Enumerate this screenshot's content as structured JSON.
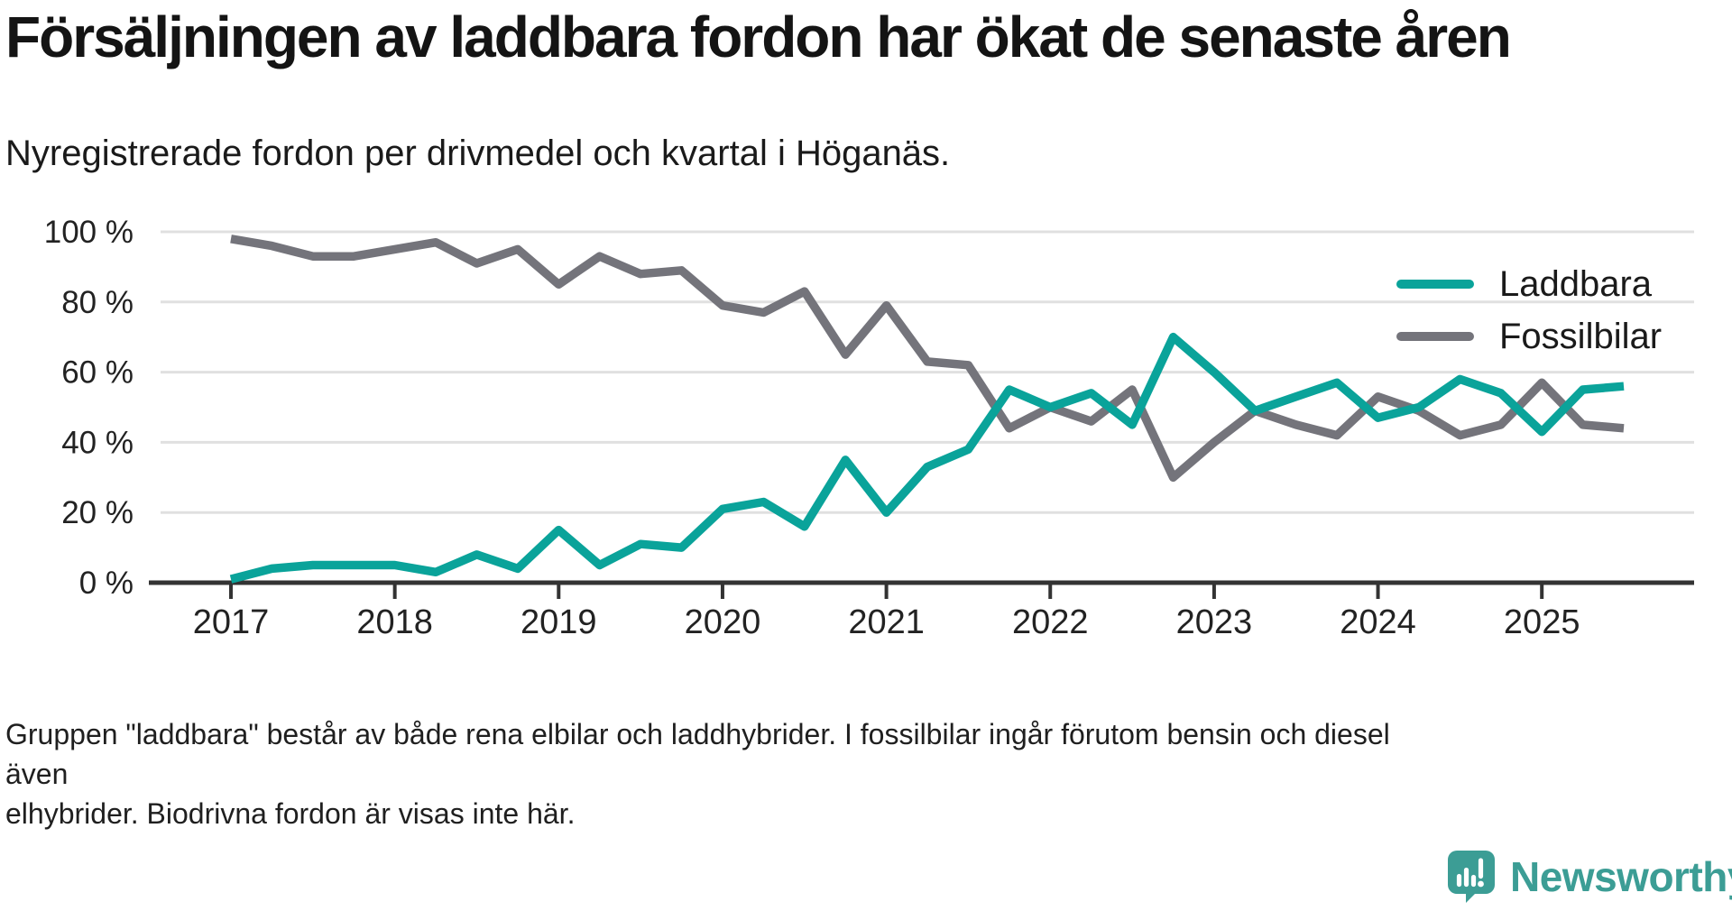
{
  "title": "Försäljningen av laddbara fordon har ökat de senaste åren",
  "subtitle": "Nyregistrerade fordon per drivmedel och kvartal i Höganäs.",
  "footnote": "Gruppen \"laddbara\" består av både rena elbilar och laddhybrider. I fossilbilar ingår förutom bensin och diesel även\nelhybrider. Biodrivna fordon är visas inte här.",
  "branding": {
    "name": "Newsworthy",
    "color": "#3C9D95",
    "icon": "newsworthy-speech-bubble-bar-chart-icon"
  },
  "chart_data": {
    "type": "line",
    "title": "Nyregistrerade fordon per drivmedel och kvartal i Höganäs",
    "x_unit": "quarter",
    "x": [
      "2017-Q1",
      "2017-Q2",
      "2017-Q3",
      "2017-Q4",
      "2018-Q1",
      "2018-Q2",
      "2018-Q3",
      "2018-Q4",
      "2019-Q1",
      "2019-Q2",
      "2019-Q3",
      "2019-Q4",
      "2020-Q1",
      "2020-Q2",
      "2020-Q3",
      "2020-Q4",
      "2021-Q1",
      "2021-Q2",
      "2021-Q3",
      "2021-Q4",
      "2022-Q1",
      "2022-Q2",
      "2022-Q3",
      "2022-Q4",
      "2023-Q1",
      "2023-Q2",
      "2023-Q3",
      "2023-Q4",
      "2024-Q1",
      "2024-Q2",
      "2024-Q3",
      "2024-Q4",
      "2025-Q1",
      "2025-Q2",
      "2025-Q3"
    ],
    "x_tick_labels": [
      "2017",
      "2018",
      "2019",
      "2020",
      "2021",
      "2022",
      "2023",
      "2024",
      "2025"
    ],
    "y_ticks": [
      {
        "value": 0,
        "label": "0 %"
      },
      {
        "value": 20,
        "label": "20 %"
      },
      {
        "value": 40,
        "label": "40 %"
      },
      {
        "value": 60,
        "label": "60 %"
      },
      {
        "value": 80,
        "label": "80 %"
      },
      {
        "value": 100,
        "label": "100 %"
      }
    ],
    "ylim": [
      0,
      100
    ],
    "grid": "horizontal",
    "legend_position": "inside-top-right",
    "series": [
      {
        "name": "Laddbara",
        "color": "#0AA39A",
        "values": [
          1,
          4,
          5,
          5,
          5,
          3,
          8,
          4,
          15,
          5,
          11,
          10,
          21,
          23,
          16,
          35,
          20,
          33,
          38,
          55,
          50,
          54,
          45,
          70,
          60,
          49,
          53,
          57,
          47,
          50,
          58,
          54,
          43,
          55,
          56
        ]
      },
      {
        "name": "Fossilbilar",
        "color": "#74747B",
        "values": [
          98,
          96,
          93,
          93,
          95,
          97,
          91,
          95,
          85,
          93,
          88,
          89,
          79,
          77,
          83,
          65,
          79,
          63,
          62,
          44,
          50,
          46,
          55,
          30,
          40,
          49,
          45,
          42,
          53,
          49,
          42,
          45,
          57,
          45,
          44
        ]
      }
    ],
    "axis_color": "#333333",
    "gridline_color": "#E0E0E0"
  }
}
